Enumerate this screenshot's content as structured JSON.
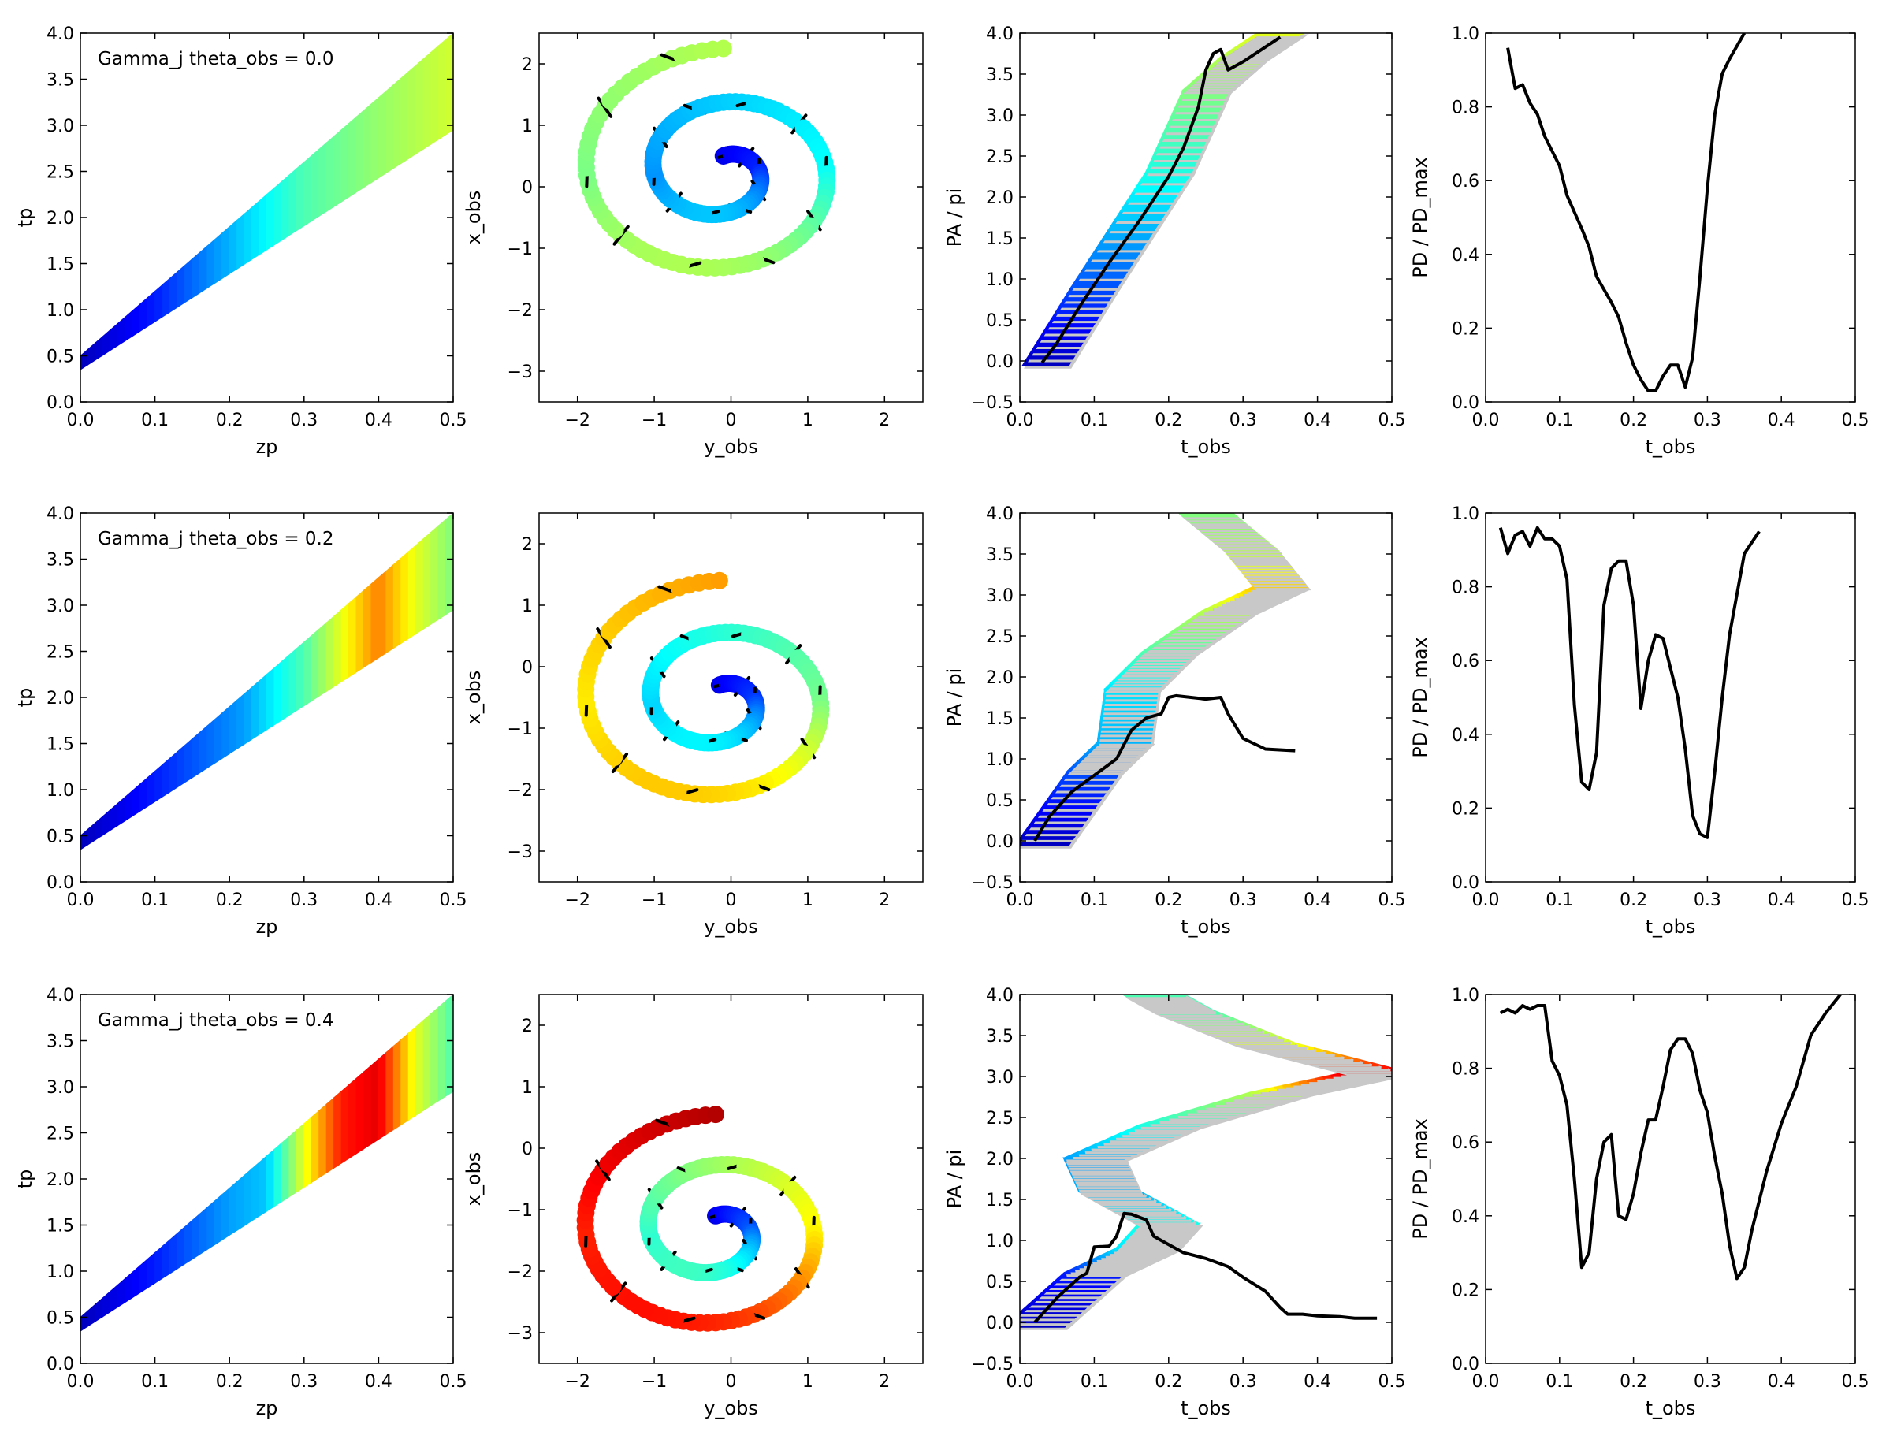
{
  "colors": {
    "line": "#000000",
    "shadow": "#c8c8c8",
    "colormap": "jet",
    "jet_stops": [
      "#00008f",
      "#0000ff",
      "#0080ff",
      "#00ffff",
      "#80ff80",
      "#ffff00",
      "#ff8000",
      "#ff0000",
      "#800000"
    ]
  },
  "chart_data": [
    {
      "id": "r0c0",
      "type": "area",
      "title": "",
      "annotation": "Gamma_j theta_obs = 0.0",
      "xlabel": "zp",
      "ylabel": "tp",
      "xlim": [
        0,
        0.5
      ],
      "ylim": [
        0,
        4.0
      ],
      "xticks": [
        "0.0",
        "0.1",
        "0.2",
        "0.3",
        "0.4",
        "0.5"
      ],
      "yticks": [
        "0.0",
        "0.5",
        "1.0",
        "1.5",
        "2.0",
        "2.5",
        "3.0",
        "3.5",
        "4.0"
      ],
      "band": {
        "lower": [
          [
            0,
            0.35
          ],
          [
            0.5,
            2.95
          ]
        ],
        "upper": [
          [
            0,
            0.5
          ],
          [
            0.5,
            4.0
          ]
        ]
      },
      "color_stops": [
        [
          0,
          0.05
        ],
        [
          0.1,
          0.15
        ],
        [
          0.2,
          0.3
        ],
        [
          0.3,
          0.45
        ],
        [
          0.4,
          0.52
        ],
        [
          0.5,
          0.58
        ]
      ]
    },
    {
      "id": "r0c1",
      "type": "scatter",
      "title": "",
      "xlabel": "y_obs",
      "ylabel": "x_obs",
      "xlim": [
        -2.5,
        2.5
      ],
      "ylim": [
        -3.5,
        2.5
      ],
      "xticks": [
        "−2",
        "−1",
        "0",
        "1",
        "2"
      ],
      "yticks": [
        "−3",
        "−2",
        "−1",
        "0",
        "1",
        "2"
      ],
      "spiral": {
        "turns": 2.0,
        "r_max": 2.0,
        "cx": -0.1,
        "cy": 0.25,
        "start_angle": 0.0,
        "hot": 0.55
      }
    },
    {
      "id": "r0c2",
      "type": "line",
      "title": "",
      "xlabel": "t_obs",
      "ylabel": "PA / pi",
      "xlim": [
        0,
        0.5
      ],
      "ylim": [
        -0.5,
        4.0
      ],
      "xticks": [
        "0.0",
        "0.1",
        "0.2",
        "0.3",
        "0.4",
        "0.5"
      ],
      "yticks": [
        "−0.5",
        "0.0",
        "0.5",
        "1.0",
        "1.5",
        "2.0",
        "2.5",
        "3.0",
        "3.5",
        "4.0"
      ],
      "band": [
        [
          0.035,
          -0.05,
          0.05
        ],
        [
          0.1,
          0.9,
          0.2
        ],
        [
          0.2,
          2.3,
          0.4
        ],
        [
          0.25,
          3.3,
          0.5
        ],
        [
          0.3,
          3.7,
          0.55
        ],
        [
          0.35,
          4.0,
          0.6
        ]
      ],
      "band_width": 0.03,
      "series": [
        {
          "name": "PA",
          "x": [
            0.03,
            0.05,
            0.08,
            0.12,
            0.16,
            0.2,
            0.22,
            0.24,
            0.25,
            0.26,
            0.27,
            0.28,
            0.3,
            0.35
          ],
          "y": [
            -0.02,
            0.22,
            0.66,
            1.2,
            1.7,
            2.25,
            2.6,
            3.1,
            3.55,
            3.75,
            3.8,
            3.55,
            3.65,
            3.95
          ]
        }
      ]
    },
    {
      "id": "r0c3",
      "type": "line",
      "title": "",
      "xlabel": "t_obs",
      "ylabel": "PD / PD_max",
      "xlim": [
        0,
        0.5
      ],
      "ylim": [
        0,
        1.0
      ],
      "xticks": [
        "0.0",
        "0.1",
        "0.2",
        "0.3",
        "0.4",
        "0.5"
      ],
      "yticks": [
        "0.0",
        "0.2",
        "0.4",
        "0.6",
        "0.8",
        "1.0"
      ],
      "series": [
        {
          "name": "PD",
          "x": [
            0.03,
            0.04,
            0.05,
            0.06,
            0.07,
            0.08,
            0.1,
            0.11,
            0.13,
            0.14,
            0.15,
            0.17,
            0.18,
            0.19,
            0.2,
            0.21,
            0.22,
            0.23,
            0.24,
            0.25,
            0.26,
            0.27,
            0.28,
            0.29,
            0.3,
            0.31,
            0.32,
            0.33,
            0.35
          ],
          "y": [
            0.96,
            0.85,
            0.86,
            0.81,
            0.78,
            0.72,
            0.64,
            0.56,
            0.47,
            0.42,
            0.34,
            0.27,
            0.23,
            0.16,
            0.1,
            0.06,
            0.03,
            0.03,
            0.07,
            0.1,
            0.1,
            0.04,
            0.12,
            0.34,
            0.58,
            0.78,
            0.89,
            0.93,
            1.0
          ]
        }
      ]
    },
    {
      "id": "r1c0",
      "type": "area",
      "title": "",
      "annotation": "Gamma_j theta_obs = 0.2",
      "xlabel": "zp",
      "ylabel": "tp",
      "xlim": [
        0,
        0.5
      ],
      "ylim": [
        0,
        4.0
      ],
      "xticks": [
        "0.0",
        "0.1",
        "0.2",
        "0.3",
        "0.4",
        "0.5"
      ],
      "yticks": [
        "0.0",
        "0.5",
        "1.0",
        "1.5",
        "2.0",
        "2.5",
        "3.0",
        "3.5",
        "4.0"
      ],
      "band": {
        "lower": [
          [
            0,
            0.35
          ],
          [
            0.5,
            2.95
          ]
        ],
        "upper": [
          [
            0,
            0.5
          ],
          [
            0.5,
            4.0
          ]
        ]
      },
      "color_stops": [
        [
          0,
          0.05
        ],
        [
          0.1,
          0.15
        ],
        [
          0.22,
          0.28
        ],
        [
          0.3,
          0.45
        ],
        [
          0.35,
          0.6
        ],
        [
          0.4,
          0.75
        ],
        [
          0.45,
          0.6
        ],
        [
          0.5,
          0.5
        ]
      ]
    },
    {
      "id": "r1c1",
      "type": "scatter",
      "title": "",
      "xlabel": "y_obs",
      "ylabel": "x_obs",
      "xlim": [
        -2.5,
        2.5
      ],
      "ylim": [
        -3.5,
        2.5
      ],
      "xticks": [
        "−2",
        "−1",
        "0",
        "1",
        "2"
      ],
      "yticks": [
        "−3",
        "−2",
        "−1",
        "0",
        "1",
        "2"
      ],
      "spiral": {
        "turns": 2.0,
        "r_max": 1.95,
        "cx": -0.15,
        "cy": -0.55,
        "start_angle": 0.0,
        "hot": 0.72
      }
    },
    {
      "id": "r1c2",
      "type": "line",
      "title": "",
      "xlabel": "t_obs",
      "ylabel": "PA / pi",
      "xlim": [
        0,
        0.5
      ],
      "ylim": [
        -0.5,
        4.0
      ],
      "xticks": [
        "0.0",
        "0.1",
        "0.2",
        "0.3",
        "0.4",
        "0.5"
      ],
      "yticks": [
        "−0.5",
        "0.0",
        "0.5",
        "1.0",
        "1.5",
        "2.0",
        "2.5",
        "3.0",
        "3.5",
        "4.0"
      ],
      "band": [
        [
          0.03,
          -0.05,
          0.05
        ],
        [
          0.1,
          0.85,
          0.2
        ],
        [
          0.14,
          1.2,
          0.3
        ],
        [
          0.15,
          1.85,
          0.35
        ],
        [
          0.2,
          2.3,
          0.45
        ],
        [
          0.28,
          2.8,
          0.55
        ],
        [
          0.35,
          3.1,
          0.68
        ],
        [
          0.31,
          3.55,
          0.55
        ],
        [
          0.25,
          4.0,
          0.5
        ]
      ],
      "band_width": 0.035,
      "series": [
        {
          "name": "PA",
          "x": [
            0.02,
            0.04,
            0.07,
            0.1,
            0.13,
            0.15,
            0.17,
            0.19,
            0.2,
            0.21,
            0.23,
            0.25,
            0.27,
            0.28,
            0.3,
            0.33,
            0.37
          ],
          "y": [
            0.0,
            0.3,
            0.6,
            0.8,
            1.0,
            1.35,
            1.5,
            1.55,
            1.75,
            1.77,
            1.75,
            1.73,
            1.75,
            1.55,
            1.25,
            1.12,
            1.1
          ]
        }
      ]
    },
    {
      "id": "r1c3",
      "type": "line",
      "title": "",
      "xlabel": "t_obs",
      "ylabel": "PD / PD_max",
      "xlim": [
        0,
        0.5
      ],
      "ylim": [
        0,
        1.0
      ],
      "xticks": [
        "0.0",
        "0.1",
        "0.2",
        "0.3",
        "0.4",
        "0.5"
      ],
      "yticks": [
        "0.0",
        "0.2",
        "0.4",
        "0.6",
        "0.8",
        "1.0"
      ],
      "series": [
        {
          "name": "PD",
          "x": [
            0.02,
            0.03,
            0.04,
            0.05,
            0.06,
            0.07,
            0.08,
            0.09,
            0.1,
            0.11,
            0.12,
            0.13,
            0.14,
            0.15,
            0.16,
            0.17,
            0.18,
            0.19,
            0.2,
            0.21,
            0.22,
            0.23,
            0.24,
            0.25,
            0.26,
            0.27,
            0.28,
            0.29,
            0.3,
            0.31,
            0.32,
            0.33,
            0.35,
            0.37
          ],
          "y": [
            0.96,
            0.89,
            0.94,
            0.95,
            0.91,
            0.96,
            0.93,
            0.93,
            0.91,
            0.82,
            0.48,
            0.27,
            0.25,
            0.35,
            0.75,
            0.85,
            0.87,
            0.87,
            0.75,
            0.47,
            0.6,
            0.67,
            0.66,
            0.58,
            0.5,
            0.36,
            0.18,
            0.13,
            0.12,
            0.3,
            0.5,
            0.67,
            0.89,
            0.95
          ]
        }
      ]
    },
    {
      "id": "r2c0",
      "type": "area",
      "title": "",
      "annotation": "Gamma_j theta_obs = 0.4",
      "xlabel": "zp",
      "ylabel": "tp",
      "xlim": [
        0,
        0.5
      ],
      "ylim": [
        0,
        4.0
      ],
      "xticks": [
        "0.0",
        "0.1",
        "0.2",
        "0.3",
        "0.4",
        "0.5"
      ],
      "yticks": [
        "0.0",
        "0.5",
        "1.0",
        "1.5",
        "2.0",
        "2.5",
        "3.0",
        "3.5",
        "4.0"
      ],
      "band": {
        "lower": [
          [
            0,
            0.35
          ],
          [
            0.5,
            2.95
          ]
        ],
        "upper": [
          [
            0,
            0.5
          ],
          [
            0.5,
            4.0
          ]
        ]
      },
      "color_stops": [
        [
          0,
          0.05
        ],
        [
          0.1,
          0.15
        ],
        [
          0.2,
          0.28
        ],
        [
          0.25,
          0.32
        ],
        [
          0.3,
          0.6
        ],
        [
          0.35,
          0.85
        ],
        [
          0.4,
          0.9
        ],
        [
          0.45,
          0.6
        ],
        [
          0.5,
          0.45
        ]
      ]
    },
    {
      "id": "r2c1",
      "type": "scatter",
      "title": "",
      "xlabel": "y_obs",
      "ylabel": "x_obs",
      "xlim": [
        -2.5,
        2.5
      ],
      "ylim": [
        -3.5,
        2.5
      ],
      "xticks": [
        "−2",
        "−1",
        "0",
        "1",
        "2"
      ],
      "yticks": [
        "−3",
        "−2",
        "−1",
        "0",
        "1",
        "2"
      ],
      "spiral": {
        "turns": 2.0,
        "r_max": 1.9,
        "cx": -0.2,
        "cy": -1.35,
        "start_angle": 0.0,
        "hot": 0.95
      }
    },
    {
      "id": "r2c2",
      "type": "line",
      "title": "",
      "xlabel": "t_obs",
      "ylabel": "PA / pi",
      "xlim": [
        0,
        0.5
      ],
      "ylim": [
        -0.5,
        4.0
      ],
      "xticks": [
        "0.0",
        "0.1",
        "0.2",
        "0.3",
        "0.4",
        "0.5"
      ],
      "yticks": [
        "−0.5",
        "0.0",
        "0.5",
        "1.0",
        "1.5",
        "2.0",
        "2.5",
        "3.0",
        "3.5",
        "4.0"
      ],
      "band": [
        [
          0.02,
          -0.05,
          0.05
        ],
        [
          0.1,
          0.6,
          0.15
        ],
        [
          0.17,
          0.9,
          0.35
        ],
        [
          0.2,
          1.2,
          0.4
        ],
        [
          0.12,
          1.6,
          0.3
        ],
        [
          0.1,
          2.0,
          0.28
        ],
        [
          0.2,
          2.4,
          0.4
        ],
        [
          0.35,
          2.8,
          0.55
        ],
        [
          0.48,
          3.05,
          0.92
        ],
        [
          0.33,
          3.4,
          0.6
        ],
        [
          0.22,
          3.8,
          0.45
        ],
        [
          0.18,
          4.0,
          0.45
        ]
      ],
      "band_width": 0.04,
      "series": [
        {
          "name": "PA",
          "x": [
            0.02,
            0.05,
            0.08,
            0.09,
            0.1,
            0.12,
            0.13,
            0.14,
            0.15,
            0.17,
            0.18,
            0.2,
            0.22,
            0.25,
            0.28,
            0.3,
            0.33,
            0.35,
            0.36,
            0.38,
            0.4,
            0.43,
            0.45,
            0.48
          ],
          "y": [
            0.0,
            0.3,
            0.55,
            0.6,
            0.92,
            0.93,
            1.05,
            1.33,
            1.32,
            1.25,
            1.05,
            0.95,
            0.85,
            0.78,
            0.68,
            0.55,
            0.38,
            0.18,
            0.1,
            0.1,
            0.08,
            0.07,
            0.05,
            0.05
          ]
        }
      ]
    },
    {
      "id": "r2c3",
      "type": "line",
      "title": "",
      "xlabel": "t_obs",
      "ylabel": "PD / PD_max",
      "xlim": [
        0,
        0.5
      ],
      "ylim": [
        0,
        1.0
      ],
      "xticks": [
        "0.0",
        "0.1",
        "0.2",
        "0.3",
        "0.4",
        "0.5"
      ],
      "yticks": [
        "0.0",
        "0.2",
        "0.4",
        "0.6",
        "0.8",
        "1.0"
      ],
      "series": [
        {
          "name": "PD",
          "x": [
            0.02,
            0.03,
            0.04,
            0.05,
            0.06,
            0.07,
            0.08,
            0.09,
            0.1,
            0.11,
            0.12,
            0.13,
            0.14,
            0.15,
            0.16,
            0.17,
            0.18,
            0.19,
            0.2,
            0.21,
            0.22,
            0.23,
            0.24,
            0.25,
            0.26,
            0.27,
            0.28,
            0.29,
            0.3,
            0.31,
            0.32,
            0.33,
            0.34,
            0.35,
            0.36,
            0.38,
            0.4,
            0.42,
            0.44,
            0.46,
            0.48
          ],
          "y": [
            0.95,
            0.96,
            0.95,
            0.97,
            0.96,
            0.97,
            0.97,
            0.82,
            0.78,
            0.7,
            0.5,
            0.26,
            0.3,
            0.5,
            0.6,
            0.62,
            0.4,
            0.39,
            0.46,
            0.57,
            0.66,
            0.66,
            0.75,
            0.85,
            0.88,
            0.88,
            0.84,
            0.74,
            0.68,
            0.56,
            0.46,
            0.32,
            0.23,
            0.26,
            0.36,
            0.52,
            0.65,
            0.75,
            0.89,
            0.95,
            1.0
          ]
        }
      ]
    }
  ]
}
